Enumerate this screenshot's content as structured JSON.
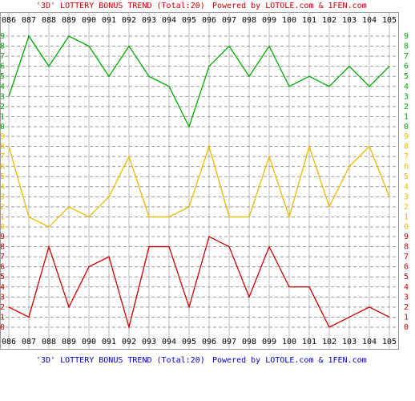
{
  "chart_data": {
    "type": "line",
    "title": "'3D' LOTTERY BONUS TREND (Total:20)",
    "credit": "Powered by LOTOLE.com & 1FEN.com",
    "categories": [
      "086",
      "087",
      "088",
      "089",
      "090",
      "091",
      "092",
      "093",
      "094",
      "095",
      "096",
      "097",
      "098",
      "099",
      "100",
      "101",
      "102",
      "103",
      "104",
      "105"
    ],
    "series": [
      {
        "color": "#00aa00",
        "values": [
          3,
          9,
          6,
          9,
          8,
          5,
          8,
          5,
          4,
          0,
          6,
          8,
          5,
          8,
          4,
          5,
          4,
          6,
          4,
          6
        ]
      },
      {
        "color": "#eebb00",
        "values": [
          8,
          1,
          0,
          2,
          1,
          3,
          7,
          1,
          1,
          2,
          8,
          1,
          1,
          7,
          1,
          8,
          2,
          6,
          8,
          3
        ]
      },
      {
        "color": "#cc0000",
        "values": [
          2,
          1,
          8,
          2,
          6,
          7,
          0,
          8,
          8,
          2,
          9,
          8,
          3,
          8,
          4,
          4,
          0,
          1,
          2,
          1
        ]
      }
    ],
    "ylim": [
      0,
      9
    ],
    "yticks": [
      0,
      1,
      2,
      3,
      4,
      5,
      6,
      7,
      8,
      9
    ],
    "grid": true
  }
}
